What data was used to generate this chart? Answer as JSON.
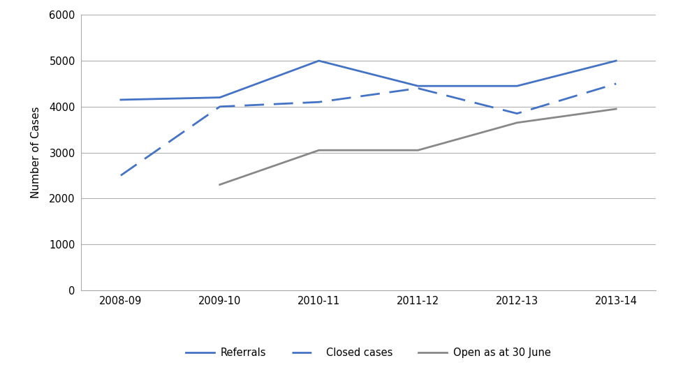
{
  "categories": [
    "2008-09",
    "2009-10",
    "2010-11",
    "2011-12",
    "2012-13",
    "2013-14"
  ],
  "referrals": [
    4150,
    4200,
    5000,
    4450,
    4450,
    5000
  ],
  "closed_cases": [
    2500,
    4000,
    4100,
    4400,
    3850,
    4500
  ],
  "open_cases": [
    null,
    2300,
    3050,
    3050,
    3650,
    3950
  ],
  "referrals_color": "#4472C4",
  "closed_cases_color": "#4472C4",
  "open_cases_color": "#888888",
  "ylabel": "Number of Cases",
  "ylim": [
    0,
    6000
  ],
  "yticks": [
    0,
    1000,
    2000,
    3000,
    4000,
    5000,
    6000
  ],
  "legend_referrals": "Referrals",
  "legend_closed": "Closed cases",
  "legend_open": "Open as at 30 June",
  "background_color": "#ffffff",
  "grid_color": "#b0b0b0"
}
